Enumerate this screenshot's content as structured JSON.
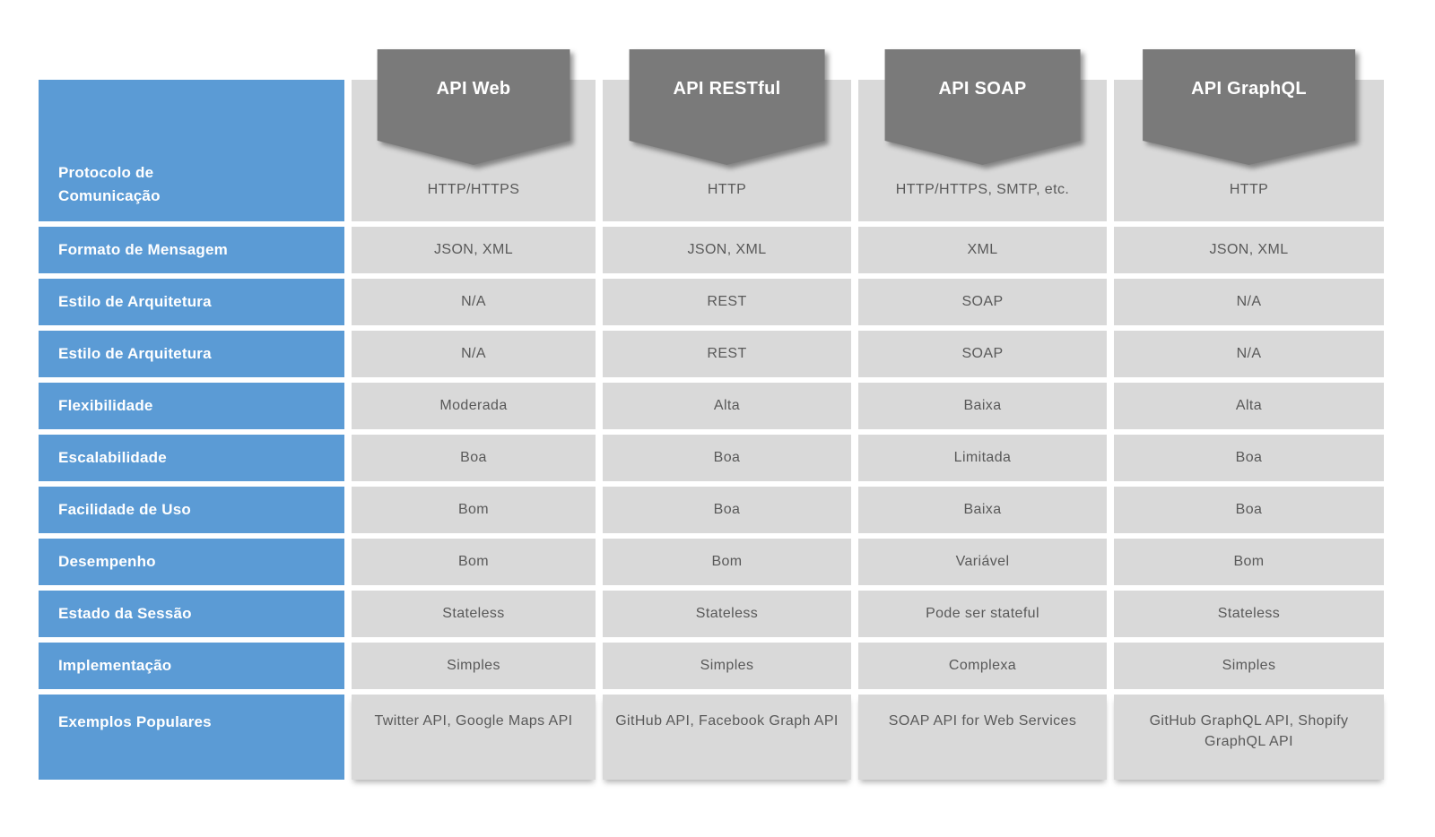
{
  "chart_data": {
    "type": "table",
    "column_headers": [
      "API Web",
      "API RESTful",
      "API SOAP",
      "API GraphQL"
    ],
    "rows": [
      {
        "label": "Protocolo de\nComunicação",
        "values": [
          "HTTP/HTTPS",
          "HTTP",
          "HTTP/HTTPS, SMTP, etc.",
          "HTTP"
        ]
      },
      {
        "label": "Formato de Mensagem",
        "values": [
          "JSON, XML",
          "JSON, XML",
          "XML",
          "JSON, XML"
        ]
      },
      {
        "label": "Estilo de Arquitetura",
        "values": [
          "N/A",
          "REST",
          "SOAP",
          "N/A"
        ]
      },
      {
        "label": "Estilo de Arquitetura",
        "values": [
          "N/A",
          "REST",
          "SOAP",
          "N/A"
        ]
      },
      {
        "label": "Flexibilidade",
        "values": [
          "Moderada",
          "Alta",
          "Baixa",
          "Alta"
        ]
      },
      {
        "label": "Escalabilidade",
        "values": [
          "Boa",
          "Boa",
          "Limitada",
          "Boa"
        ]
      },
      {
        "label": "Facilidade de Uso",
        "values": [
          "Bom",
          "Boa",
          "Baixa",
          "Boa"
        ]
      },
      {
        "label": "Desempenho",
        "values": [
          "Bom",
          "Bom",
          "Variável",
          "Bom"
        ]
      },
      {
        "label": "Estado da Sessão",
        "values": [
          "Stateless",
          "Stateless",
          "Pode ser stateful",
          "Stateless"
        ]
      },
      {
        "label": "Implementação",
        "values": [
          "Simples",
          "Simples",
          "Complexa",
          "Simples"
        ]
      },
      {
        "label": "Exemplos Populares",
        "values": [
          "Twitter API, Google Maps API",
          "GitHub API, Facebook Graph API",
          "SOAP API for Web Services",
          "GitHub GraphQL API, Shopify\nGraphQL API"
        ]
      }
    ]
  },
  "colors": {
    "label_column_blue": "#5b9bd5",
    "header_banner_gray": "#7a7a7a",
    "cell_gray": "#d9d9d9",
    "value_text": "#595959",
    "label_text": "#ffffff",
    "background": "#ffffff"
  }
}
